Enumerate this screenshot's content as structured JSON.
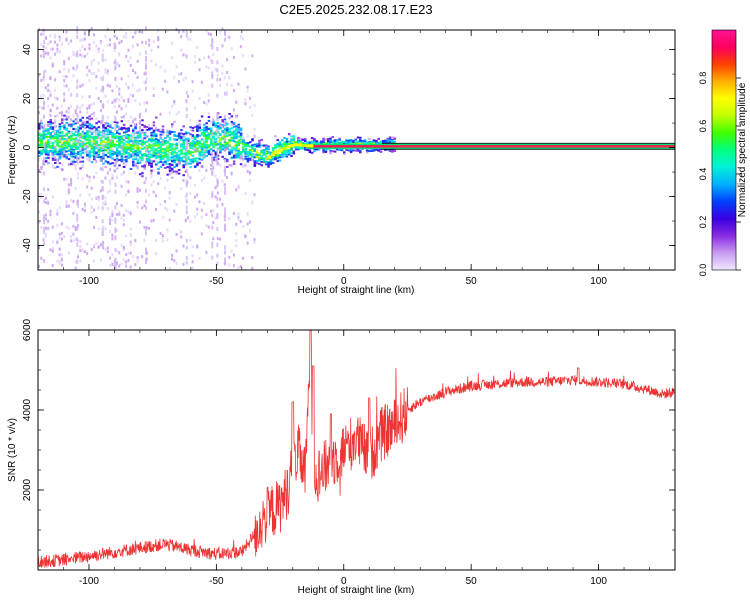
{
  "chart_data": [
    {
      "type": "heatmap",
      "title": "C2E5.2025.232.08.17.E23",
      "xlabel": "Height of straight line (km)",
      "ylabel": "Frequency (Hz)",
      "xlim": [
        -120,
        130
      ],
      "ylim": [
        -50,
        48
      ],
      "xticks": [
        -100,
        -50,
        0,
        50,
        100
      ],
      "yticks": [
        -40,
        -20,
        0,
        20,
        40
      ],
      "colorbar": {
        "label": "Normalized spectral amplitude",
        "ticks": [
          "0.0",
          "0.2",
          "0.4",
          "0.6",
          "0.8"
        ],
        "range": [
          0,
          1
        ],
        "colors": [
          "#f0e8ff",
          "#c89cf0",
          "#8a2be2",
          "#3a00e0",
          "#0040ff",
          "#00b0ff",
          "#00f0d8",
          "#00ff80",
          "#40ff00",
          "#c0ff00",
          "#ffff00",
          "#ffb000",
          "#ff4000",
          "#ff0060",
          "#ff1493"
        ]
      },
      "ridge": {
        "height_km": [
          -120,
          -100,
          -80,
          -60,
          -55,
          -50,
          -45,
          -40,
          -35,
          -30,
          -25,
          -20,
          -15,
          -10,
          0,
          10,
          20,
          50,
          100,
          130
        ],
        "frequency_hz": [
          2,
          2,
          0,
          -2,
          2,
          4,
          3,
          0,
          -3,
          -4,
          -1,
          1,
          0.5,
          0.5,
          0.5,
          0.5,
          0.5,
          0.5,
          0.5,
          0.5
        ]
      }
    },
    {
      "type": "line",
      "xlabel": "Height of straight line (km)",
      "ylabel": "SNR (10 * v/v)",
      "xlim": [
        -120,
        130
      ],
      "ylim": [
        0,
        6000
      ],
      "xticks": [
        -100,
        -50,
        0,
        50,
        100
      ],
      "yticks": [
        2000,
        4000,
        6000
      ],
      "color": "#ee3333",
      "series": [
        {
          "name": "SNR",
          "x": [
            -120,
            -110,
            -100,
            -90,
            -80,
            -70,
            -60,
            -50,
            -40,
            -35,
            -30,
            -25,
            -22,
            -20,
            -18,
            -15,
            -13,
            -12,
            -10,
            -5,
            0,
            5,
            10,
            15,
            20,
            25,
            30,
            40,
            50,
            60,
            70,
            80,
            90,
            100,
            110,
            120,
            125,
            130
          ],
          "y": [
            200,
            250,
            350,
            450,
            550,
            650,
            500,
            400,
            450,
            900,
            1400,
            1600,
            2000,
            2600,
            3000,
            2400,
            5800,
            2500,
            2400,
            2700,
            3000,
            3300,
            2800,
            3400,
            3600,
            4000,
            4200,
            4450,
            4600,
            4650,
            4700,
            4700,
            4750,
            4700,
            4650,
            4500,
            4400,
            4450
          ]
        }
      ],
      "spikes": [
        {
          "x": -20,
          "y": 4200
        },
        {
          "x": -13,
          "y": 6000
        },
        {
          "x": -12,
          "y": 5100
        },
        {
          "x": -5,
          "y": 3900
        },
        {
          "x": 10,
          "y": 4300
        },
        {
          "x": 92,
          "y": 5050
        }
      ]
    }
  ]
}
